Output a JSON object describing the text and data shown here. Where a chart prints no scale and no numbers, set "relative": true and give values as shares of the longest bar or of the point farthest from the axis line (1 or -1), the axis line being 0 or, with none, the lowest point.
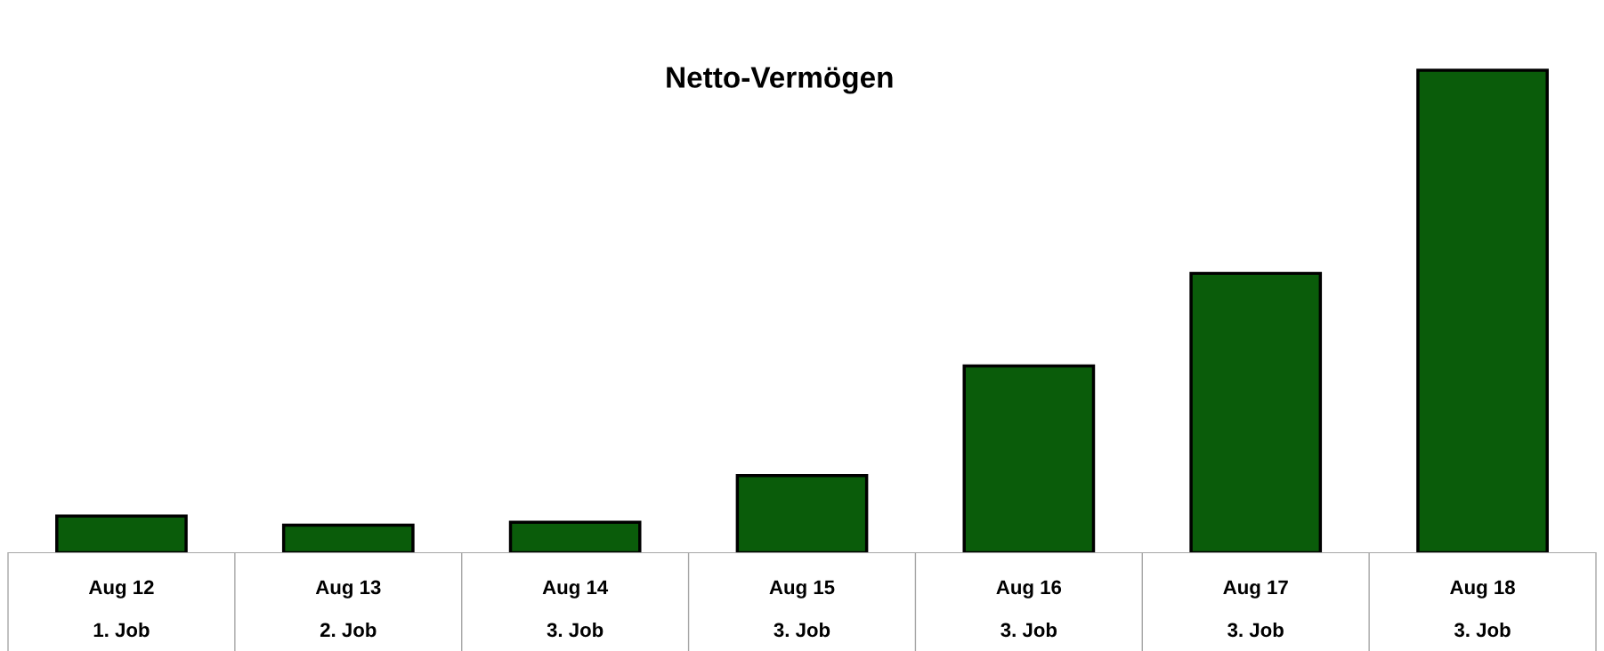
{
  "chart_data": {
    "type": "bar",
    "title": "Netto-Vermögen",
    "categories": [
      "Aug 12\n\n1. Job",
      "Aug 13\n\n2. Job",
      "Aug 14\n\n3. Job",
      "Aug 15\n\n3. Job",
      "Aug 16\n\n3. Job",
      "Aug 17\n\n3. Job",
      "Aug 18\n\n3. Job"
    ],
    "values": [
      0.076,
      0.057,
      0.063,
      0.16,
      0.387,
      0.579,
      1
    ],
    "color": "#0a5c0a",
    "relative": true,
    "grid": false
  }
}
